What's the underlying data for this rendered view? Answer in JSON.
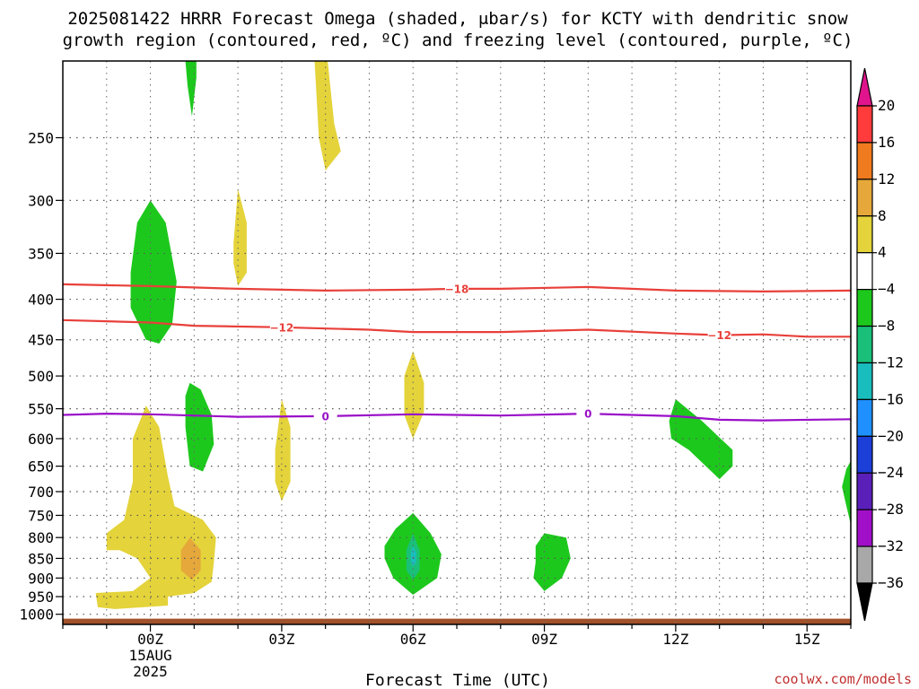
{
  "chart_data": {
    "type": "contour",
    "title_lines": [
      "2025081422 HRRR Forecast Omega (shaded, μbar/s) for KCTY with dendritic snow",
      "growth region (contoured, red, ºC) and freezing level (contoured, purple, ºC)"
    ],
    "xlabel": "Forecast Time (UTC)",
    "ylabel": "",
    "x_ticks": [
      {
        "hour": 0,
        "label": "00Z",
        "sub": [
          "15AUG",
          "2025"
        ]
      },
      {
        "hour": 3,
        "label": "03Z",
        "sub": []
      },
      {
        "hour": 6,
        "label": "06Z",
        "sub": []
      },
      {
        "hour": 9,
        "label": "09Z",
        "sub": []
      },
      {
        "hour": 12,
        "label": "12Z",
        "sub": []
      },
      {
        "hour": 15,
        "label": "15Z",
        "sub": []
      }
    ],
    "xlim": [
      -2,
      16
    ],
    "y_scale": "log",
    "ylim": [
      1030,
      200
    ],
    "y_ticks": [
      250,
      300,
      350,
      400,
      450,
      500,
      550,
      600,
      650,
      700,
      750,
      800,
      850,
      900,
      950,
      1000
    ],
    "y_tick_labels": [
      "250",
      "300",
      "350",
      "400",
      "450",
      "500",
      "550",
      "600",
      "650",
      "700",
      "750",
      "800",
      "850",
      "900",
      "950",
      "1000"
    ],
    "colorbar": {
      "labels": [
        "20",
        "16",
        "12",
        "8",
        "4",
        "−4",
        "−8",
        "−12",
        "−16",
        "−20",
        "−24",
        "−28",
        "−32",
        "−36"
      ],
      "colors": [
        "#ff3b3b",
        "#f07a1e",
        "#e6a83a",
        "#e4d33a",
        "#ffffff",
        "#1dc81d",
        "#1ac07a",
        "#1abdbd",
        "#1e90ff",
        "#1c3fd8",
        "#5a1fb8",
        "#a10fc9",
        "#a8a8a8"
      ],
      "top_arrow": "#e0148c",
      "bottom_arrow": "#000000"
    },
    "contours": [
      {
        "name": "-18",
        "color": "#e8403a",
        "label_at": [
          7
        ],
        "points": [
          [
            -2,
            383
          ],
          [
            0,
            385
          ],
          [
            2,
            388
          ],
          [
            4,
            390
          ],
          [
            6,
            389
          ],
          [
            7,
            388
          ],
          [
            8,
            388
          ],
          [
            10,
            386
          ],
          [
            12,
            390
          ],
          [
            14,
            391
          ],
          [
            16,
            390
          ]
        ]
      },
      {
        "name": "-12",
        "color": "#e8403a",
        "label_at": [
          3,
          13
        ],
        "points": [
          [
            -2,
            425
          ],
          [
            0,
            428
          ],
          [
            1,
            432
          ],
          [
            3,
            434
          ],
          [
            5,
            437
          ],
          [
            6,
            440
          ],
          [
            8,
            440
          ],
          [
            10,
            437
          ],
          [
            12,
            442
          ],
          [
            13,
            444
          ],
          [
            14,
            443
          ],
          [
            15,
            446
          ],
          [
            16,
            446
          ]
        ]
      },
      {
        "name": "0",
        "color": "#9a0fc8",
        "label_at": [
          4,
          10
        ],
        "points": [
          [
            -2,
            560
          ],
          [
            -1,
            558
          ],
          [
            0,
            559
          ],
          [
            2,
            563
          ],
          [
            4,
            562
          ],
          [
            6,
            559
          ],
          [
            8,
            561
          ],
          [
            10,
            558
          ],
          [
            12,
            562
          ],
          [
            13,
            568
          ],
          [
            14,
            569
          ],
          [
            16,
            567
          ]
        ]
      }
    ],
    "omega_regions": [
      {
        "level": "-4",
        "color": "#1dc81d",
        "points": [
          [
            -0.45,
            370
          ],
          [
            -0.3,
            320
          ],
          [
            0,
            300
          ],
          [
            0.35,
            320
          ],
          [
            0.6,
            380
          ],
          [
            0.5,
            430
          ],
          [
            0.2,
            455
          ],
          [
            -0.1,
            450
          ],
          [
            -0.45,
            410
          ]
        ]
      },
      {
        "level": "-4",
        "color": "#1dc81d",
        "points": [
          [
            0.8,
            200
          ],
          [
            1.05,
            200
          ],
          [
            1.05,
            210
          ],
          [
            0.95,
            235
          ],
          [
            0.85,
            215
          ]
        ]
      },
      {
        "level": "-4",
        "color": "#1dc81d",
        "points": [
          [
            0.8,
            530
          ],
          [
            0.9,
            510
          ],
          [
            1.15,
            520
          ],
          [
            1.4,
            560
          ],
          [
            1.45,
            610
          ],
          [
            1.2,
            660
          ],
          [
            0.9,
            650
          ],
          [
            0.8,
            580
          ]
        ]
      },
      {
        "level": "4",
        "color": "#e4d33a",
        "points": [
          [
            3.75,
            200
          ],
          [
            4.05,
            200
          ],
          [
            4.2,
            240
          ],
          [
            4.35,
            260
          ],
          [
            4.0,
            275
          ],
          [
            3.85,
            250
          ]
        ]
      },
      {
        "level": "4",
        "color": "#e4d33a",
        "points": [
          [
            1.9,
            340
          ],
          [
            2.0,
            290
          ],
          [
            2.2,
            320
          ],
          [
            2.2,
            370
          ],
          [
            2.0,
            385
          ],
          [
            1.9,
            360
          ]
        ]
      },
      {
        "level": "4",
        "color": "#e4d33a",
        "points": [
          [
            2.85,
            620
          ],
          [
            3.0,
            535
          ],
          [
            3.2,
            580
          ],
          [
            3.2,
            680
          ],
          [
            3.0,
            720
          ],
          [
            2.85,
            680
          ]
        ]
      },
      {
        "level": "4",
        "color": "#e4d33a",
        "points": [
          [
            5.8,
            500
          ],
          [
            6.0,
            465
          ],
          [
            6.25,
            510
          ],
          [
            6.25,
            555
          ],
          [
            6.0,
            600
          ],
          [
            5.8,
            560
          ]
        ]
      },
      {
        "level": "4",
        "color": "#e4d33a",
        "points": [
          [
            -0.4,
            600
          ],
          [
            -0.1,
            545
          ],
          [
            0.2,
            580
          ],
          [
            0.4,
            670
          ],
          [
            0.55,
            730
          ],
          [
            1.2,
            760
          ],
          [
            1.5,
            800
          ],
          [
            1.45,
            860
          ],
          [
            1.4,
            910
          ],
          [
            1.0,
            940
          ],
          [
            0.4,
            950
          ],
          [
            0.4,
            975
          ],
          [
            -0.8,
            985
          ],
          [
            -1.2,
            980
          ],
          [
            -1.25,
            940
          ],
          [
            -0.4,
            935
          ],
          [
            0,
            900
          ],
          [
            -0.3,
            850
          ],
          [
            -0.7,
            830
          ],
          [
            -1.0,
            830
          ],
          [
            -1.0,
            790
          ],
          [
            -0.6,
            760
          ],
          [
            -0.4,
            680
          ]
        ]
      },
      {
        "level": "8",
        "color": "#e6a83a",
        "points": [
          [
            0.7,
            830
          ],
          [
            0.9,
            800
          ],
          [
            1.15,
            830
          ],
          [
            1.15,
            880
          ],
          [
            0.95,
            905
          ],
          [
            0.7,
            880
          ]
        ]
      },
      {
        "level": "-4",
        "color": "#1dc81d",
        "points": [
          [
            5.35,
            820
          ],
          [
            5.6,
            780
          ],
          [
            6.0,
            745
          ],
          [
            6.4,
            790
          ],
          [
            6.65,
            840
          ],
          [
            6.55,
            900
          ],
          [
            6.0,
            945
          ],
          [
            5.55,
            900
          ],
          [
            5.35,
            850
          ]
        ]
      },
      {
        "level": "-8",
        "color": "#1ac07a",
        "points": [
          [
            5.85,
            830
          ],
          [
            6.0,
            790
          ],
          [
            6.15,
            830
          ],
          [
            6.15,
            880
          ],
          [
            6.0,
            905
          ],
          [
            5.85,
            880
          ]
        ]
      },
      {
        "level": "-12",
        "color": "#1abdbd",
        "points": [
          [
            5.95,
            835
          ],
          [
            6.0,
            820
          ],
          [
            6.07,
            835
          ],
          [
            6.07,
            860
          ],
          [
            6.0,
            870
          ],
          [
            5.95,
            860
          ]
        ]
      },
      {
        "level": "-4",
        "color": "#1dc81d",
        "points": [
          [
            8.8,
            860
          ],
          [
            8.8,
            820
          ],
          [
            9.0,
            790
          ],
          [
            9.5,
            800
          ],
          [
            9.6,
            850
          ],
          [
            9.4,
            900
          ],
          [
            9.0,
            935
          ],
          [
            8.75,
            900
          ]
        ]
      },
      {
        "level": "-4",
        "color": "#1dc81d",
        "points": [
          [
            11.85,
            570
          ],
          [
            12.0,
            535
          ],
          [
            12.6,
            570
          ],
          [
            13.3,
            620
          ],
          [
            13.3,
            650
          ],
          [
            13.0,
            675
          ],
          [
            12.3,
            620
          ],
          [
            11.9,
            600
          ]
        ]
      },
      {
        "level": "-4",
        "color": "#1dc81d",
        "points": [
          [
            15.8,
            690
          ],
          [
            15.9,
            655
          ],
          [
            16.0,
            640
          ],
          [
            16.0,
            770
          ],
          [
            15.9,
            730
          ]
        ]
      }
    ],
    "surface": {
      "color": "#a2512a",
      "pressure": 1013
    }
  },
  "credit": "coolwx.com/models",
  "credit_color": "#c03030"
}
